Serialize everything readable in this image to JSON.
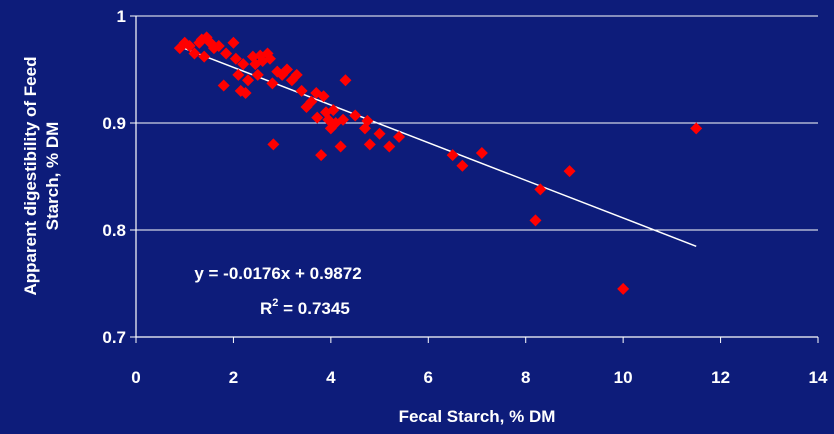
{
  "colors": {
    "background": "#0d1c7a",
    "axis": "#ffffff",
    "gridline": "#ffffff",
    "marker": "#ff0000",
    "trendline": "#ffffff",
    "text": "#ffffff"
  },
  "chart_data": {
    "type": "scatter",
    "title": "",
    "xlabel": "Fecal Starch, % DM",
    "ylabel": "Apparent digestibility of Feed Starch, % DM",
    "xlim": [
      0,
      14
    ],
    "ylim": [
      0.7,
      1.0
    ],
    "x_ticks": [
      "0",
      "2",
      "4",
      "6",
      "8",
      "10",
      "12",
      "14"
    ],
    "y_ticks": [
      "0.7",
      "0.8",
      "0.9",
      "1"
    ],
    "grid": "horizontal",
    "marker": "diamond",
    "points": [
      {
        "x": 0.9,
        "y": 0.97
      },
      {
        "x": 1.0,
        "y": 0.975
      },
      {
        "x": 1.1,
        "y": 0.972
      },
      {
        "x": 1.2,
        "y": 0.965
      },
      {
        "x": 1.3,
        "y": 0.975
      },
      {
        "x": 1.35,
        "y": 0.978
      },
      {
        "x": 1.4,
        "y": 0.962
      },
      {
        "x": 1.45,
        "y": 0.98
      },
      {
        "x": 1.5,
        "y": 0.976
      },
      {
        "x": 1.55,
        "y": 0.974
      },
      {
        "x": 1.6,
        "y": 0.97
      },
      {
        "x": 1.7,
        "y": 0.972
      },
      {
        "x": 1.8,
        "y": 0.935
      },
      {
        "x": 1.85,
        "y": 0.965
      },
      {
        "x": 2.0,
        "y": 0.975
      },
      {
        "x": 2.05,
        "y": 0.96
      },
      {
        "x": 2.1,
        "y": 0.945
      },
      {
        "x": 2.15,
        "y": 0.93
      },
      {
        "x": 2.2,
        "y": 0.955
      },
      {
        "x": 2.25,
        "y": 0.928
      },
      {
        "x": 2.3,
        "y": 0.94
      },
      {
        "x": 2.4,
        "y": 0.962
      },
      {
        "x": 2.45,
        "y": 0.955
      },
      {
        "x": 2.5,
        "y": 0.945
      },
      {
        "x": 2.55,
        "y": 0.963
      },
      {
        "x": 2.6,
        "y": 0.958
      },
      {
        "x": 2.7,
        "y": 0.965
      },
      {
        "x": 2.75,
        "y": 0.96
      },
      {
        "x": 2.8,
        "y": 0.937
      },
      {
        "x": 2.82,
        "y": 0.88
      },
      {
        "x": 2.9,
        "y": 0.948
      },
      {
        "x": 3.0,
        "y": 0.945
      },
      {
        "x": 3.1,
        "y": 0.95
      },
      {
        "x": 3.2,
        "y": 0.94
      },
      {
        "x": 3.3,
        "y": 0.945
      },
      {
        "x": 3.4,
        "y": 0.93
      },
      {
        "x": 3.5,
        "y": 0.915
      },
      {
        "x": 3.6,
        "y": 0.92
      },
      {
        "x": 3.7,
        "y": 0.928
      },
      {
        "x": 3.72,
        "y": 0.905
      },
      {
        "x": 3.8,
        "y": 0.87
      },
      {
        "x": 3.85,
        "y": 0.925
      },
      {
        "x": 3.9,
        "y": 0.91
      },
      {
        "x": 3.95,
        "y": 0.903
      },
      {
        "x": 4.0,
        "y": 0.895
      },
      {
        "x": 4.05,
        "y": 0.912
      },
      {
        "x": 4.1,
        "y": 0.9
      },
      {
        "x": 4.2,
        "y": 0.878
      },
      {
        "x": 4.25,
        "y": 0.903
      },
      {
        "x": 4.3,
        "y": 0.94
      },
      {
        "x": 4.5,
        "y": 0.907
      },
      {
        "x": 4.7,
        "y": 0.895
      },
      {
        "x": 4.75,
        "y": 0.902
      },
      {
        "x": 4.8,
        "y": 0.88
      },
      {
        "x": 5.0,
        "y": 0.89
      },
      {
        "x": 5.2,
        "y": 0.878
      },
      {
        "x": 5.4,
        "y": 0.887
      },
      {
        "x": 6.5,
        "y": 0.87
      },
      {
        "x": 6.7,
        "y": 0.86
      },
      {
        "x": 7.1,
        "y": 0.872
      },
      {
        "x": 8.2,
        "y": 0.809
      },
      {
        "x": 8.3,
        "y": 0.838
      },
      {
        "x": 8.9,
        "y": 0.855
      },
      {
        "x": 10.0,
        "y": 0.745
      },
      {
        "x": 11.5,
        "y": 0.895
      }
    ],
    "trendline": {
      "slope": -0.0176,
      "intercept": 0.9872,
      "x_range": [
        0.9,
        11.5
      ],
      "equation_label": "y = -0.0176x + 0.9872",
      "r2_prefix": "R",
      "r2_sup": "2",
      "r2_value": " = 0.7345"
    }
  }
}
